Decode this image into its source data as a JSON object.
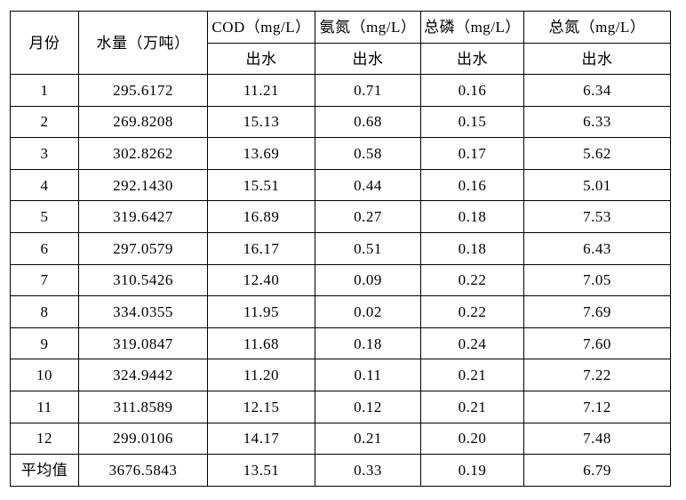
{
  "table": {
    "columns": [
      {
        "label": "月份",
        "sub": null
      },
      {
        "label": "水量（万吨）",
        "sub": null
      },
      {
        "label": "COD（mg/L）",
        "sub": "出水"
      },
      {
        "label": "氨氮（mg/L）",
        "sub": "出水"
      },
      {
        "label": "总磷（mg/L）",
        "sub": "出水"
      },
      {
        "label": "总氮（mg/L）",
        "sub": "出水"
      }
    ],
    "rows": [
      [
        "1",
        "295.6172",
        "11.21",
        "0.71",
        "0.16",
        "6.34"
      ],
      [
        "2",
        "269.8208",
        "15.13",
        "0.68",
        "0.15",
        "6.33"
      ],
      [
        "3",
        "302.8262",
        "13.69",
        "0.58",
        "0.17",
        "5.62"
      ],
      [
        "4",
        "292.1430",
        "15.51",
        "0.44",
        "0.16",
        "5.01"
      ],
      [
        "5",
        "319.6427",
        "16.89",
        "0.27",
        "0.18",
        "7.53"
      ],
      [
        "6",
        "297.0579",
        "16.17",
        "0.51",
        "0.18",
        "6.43"
      ],
      [
        "7",
        "310.5426",
        "12.40",
        "0.09",
        "0.22",
        "7.05"
      ],
      [
        "8",
        "334.0355",
        "11.95",
        "0.02",
        "0.22",
        "7.69"
      ],
      [
        "9",
        "319.0847",
        "11.68",
        "0.18",
        "0.24",
        "7.60"
      ],
      [
        "10",
        "324.9442",
        "11.20",
        "0.11",
        "0.21",
        "7.22"
      ],
      [
        "11",
        "311.8589",
        "12.15",
        "0.12",
        "0.21",
        "7.12"
      ],
      [
        "12",
        "299.0106",
        "14.17",
        "0.21",
        "0.20",
        "7.48"
      ],
      [
        "平均值",
        "3676.5843",
        "13.51",
        "0.33",
        "0.19",
        "6.79"
      ]
    ],
    "colors": {
      "border": "#000000",
      "text": "#000000",
      "background": "#ffffff"
    }
  }
}
